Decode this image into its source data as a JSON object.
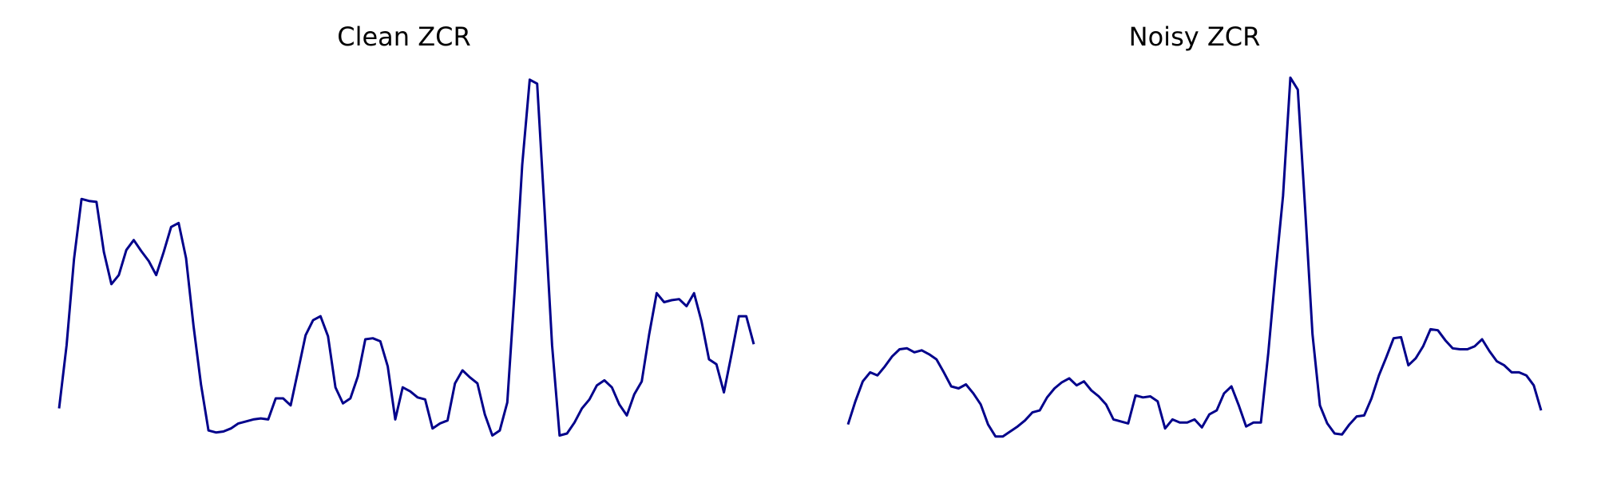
{
  "colors": {
    "line": "#00008b",
    "background": "#ffffff"
  },
  "chart_data": [
    {
      "type": "line",
      "title": "Clean ZCR",
      "xlabel": "",
      "ylabel": "",
      "axes": "off",
      "grid": false,
      "values": [
        0.189,
        0.252,
        0.338,
        0.398,
        0.396,
        0.395,
        0.345,
        0.313,
        0.322,
        0.347,
        0.357,
        0.346,
        0.336,
        0.322,
        0.345,
        0.37,
        0.374,
        0.339,
        0.271,
        0.213,
        0.167,
        0.165,
        0.166,
        0.169,
        0.174,
        0.176,
        0.178,
        0.179,
        0.178,
        0.199,
        0.199,
        0.192,
        0.227,
        0.262,
        0.277,
        0.281,
        0.261,
        0.21,
        0.194,
        0.199,
        0.221,
        0.258,
        0.259,
        0.256,
        0.231,
        0.178,
        0.21,
        0.206,
        0.2,
        0.198,
        0.169,
        0.174,
        0.177,
        0.214,
        0.227,
        0.22,
        0.214,
        0.183,
        0.162,
        0.167,
        0.195,
        0.307,
        0.432,
        0.517,
        0.513,
        0.385,
        0.252,
        0.162,
        0.164,
        0.175,
        0.189,
        0.198,
        0.212,
        0.217,
        0.21,
        0.193,
        0.182,
        0.203,
        0.216,
        0.263,
        0.304,
        0.295,
        0.297,
        0.298,
        0.291,
        0.304,
        0.276,
        0.238,
        0.233,
        0.205,
        0.242,
        0.281,
        0.281,
        0.253
      ]
    },
    {
      "type": "line",
      "title": "Noisy ZCR",
      "xlabel": "",
      "ylabel": "",
      "axes": "off",
      "grid": false,
      "values": [
        0.173,
        0.196,
        0.216,
        0.225,
        0.222,
        0.231,
        0.241,
        0.248,
        0.249,
        0.245,
        0.247,
        0.243,
        0.238,
        0.225,
        0.211,
        0.209,
        0.213,
        0.204,
        0.193,
        0.173,
        0.161,
        0.161,
        0.166,
        0.171,
        0.177,
        0.185,
        0.187,
        0.2,
        0.209,
        0.215,
        0.219,
        0.212,
        0.216,
        0.207,
        0.201,
        0.193,
        0.178,
        0.176,
        0.174,
        0.202,
        0.2,
        0.201,
        0.196,
        0.169,
        0.178,
        0.175,
        0.175,
        0.178,
        0.17,
        0.183,
        0.187,
        0.204,
        0.211,
        0.192,
        0.171,
        0.175,
        0.175,
        0.244,
        0.326,
        0.401,
        0.519,
        0.507,
        0.388,
        0.263,
        0.192,
        0.174,
        0.164,
        0.163,
        0.173,
        0.181,
        0.182,
        0.199,
        0.222,
        0.24,
        0.259,
        0.26,
        0.232,
        0.239,
        0.251,
        0.268,
        0.267,
        0.257,
        0.249,
        0.248,
        0.248,
        0.251,
        0.258,
        0.246,
        0.236,
        0.232,
        0.225,
        0.225,
        0.222,
        0.212,
        0.187
      ]
    }
  ]
}
